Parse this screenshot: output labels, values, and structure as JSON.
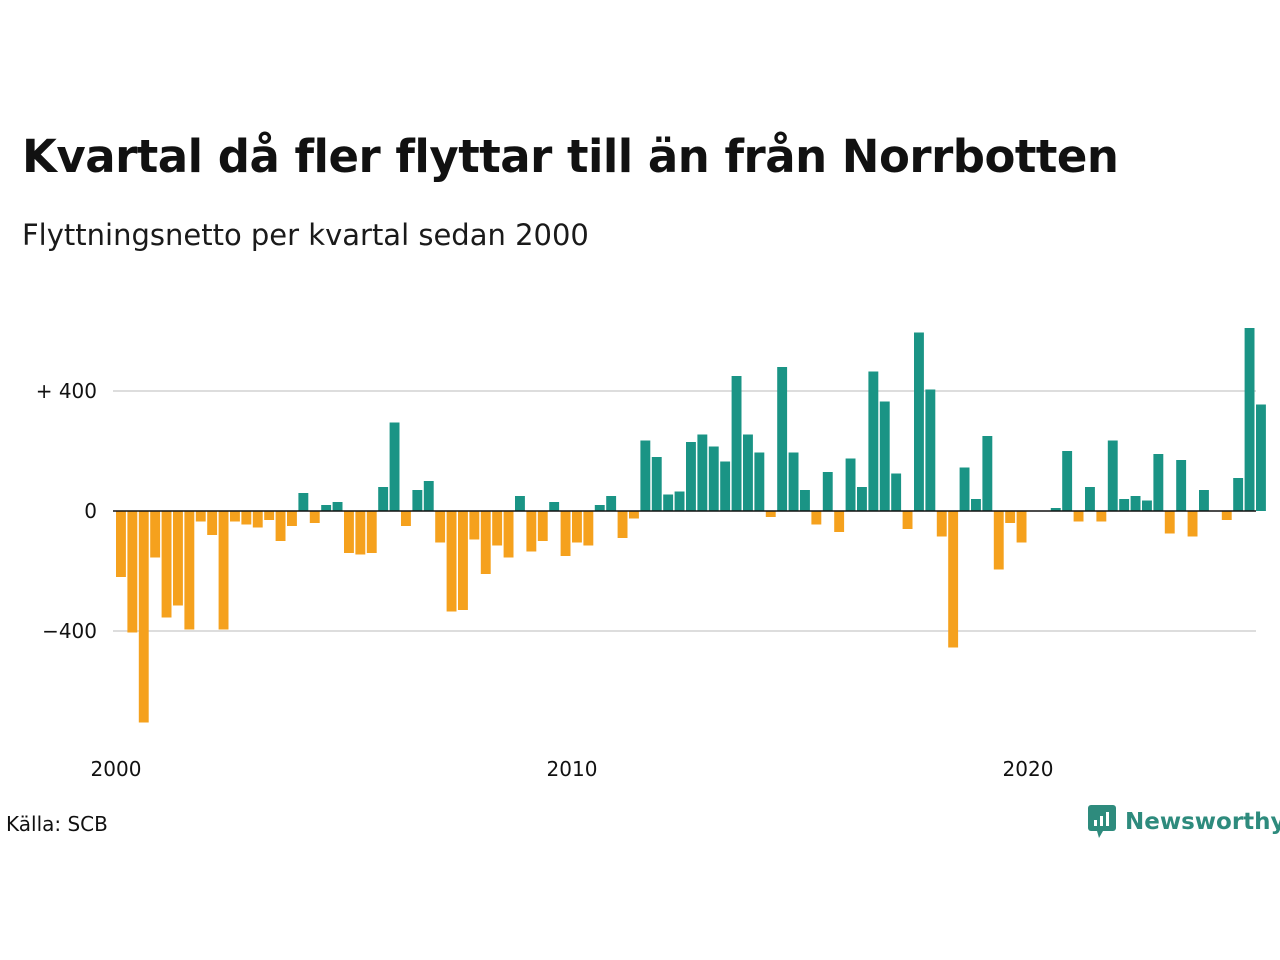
{
  "header": {
    "title": "Kvartal då fler flyttar till än från Norrbotten",
    "subtitle": "Flyttningsnetto per kvartal sedan 2000"
  },
  "footer": {
    "source": "Källa: SCB",
    "brand": "Newsworthy"
  },
  "colors": {
    "positive": "#1a9485",
    "negative": "#f5a11d",
    "grid": "#dddddd",
    "zero_line": "#111111",
    "brand": "#2e8b7d"
  },
  "chart_data": {
    "type": "bar",
    "title": "Kvartal då fler flyttar till än från Norrbotten",
    "subtitle": "Flyttningsnetto per kvartal sedan 2000",
    "x_start_year": 2000,
    "periods_per_year": 4,
    "x_ticks": [
      {
        "year": 2000,
        "label": "2000"
      },
      {
        "year": 2010,
        "label": "2010"
      },
      {
        "year": 2020,
        "label": "2020"
      }
    ],
    "y_ticks": [
      {
        "value": 400,
        "label": "+ 400"
      },
      {
        "value": 0,
        "label": "0"
      },
      {
        "value": -400,
        "label": "−400"
      }
    ],
    "ylim": [
      -720,
      620
    ],
    "grid": true,
    "values": [
      -220,
      -405,
      -705,
      -155,
      -355,
      -315,
      -395,
      -35,
      -80,
      -395,
      -35,
      -45,
      -55,
      -30,
      -100,
      -50,
      60,
      -40,
      20,
      30,
      -140,
      -145,
      -140,
      80,
      295,
      -50,
      70,
      100,
      -105,
      -335,
      -330,
      -95,
      -210,
      -115,
      -155,
      50,
      -135,
      -100,
      30,
      -150,
      -105,
      -115,
      20,
      50,
      -90,
      -25,
      235,
      180,
      55,
      65,
      230,
      255,
      215,
      165,
      450,
      255,
      195,
      -20,
      480,
      195,
      70,
      -45,
      130,
      -70,
      175,
      80,
      465,
      365,
      125,
      -60,
      595,
      405,
      -85,
      -455,
      145,
      40,
      250,
      -195,
      -40,
      -105,
      0,
      0,
      10,
      200,
      -35,
      80,
      -35,
      235,
      40,
      50,
      35,
      190,
      -75,
      170,
      -85,
      70,
      0,
      -30,
      110,
      610,
      355
    ]
  }
}
